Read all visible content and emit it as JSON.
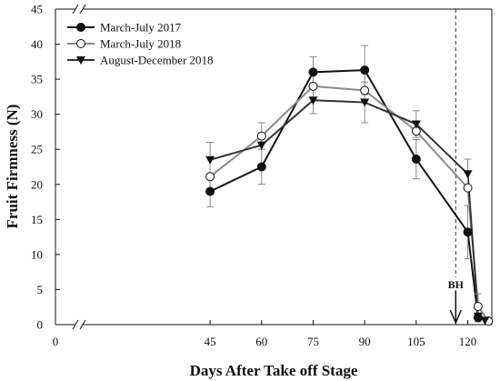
{
  "chart_data": {
    "type": "line",
    "title": "",
    "xlabel": "Days After Take off Stage",
    "ylabel": "Fruit Firmness (N)",
    "xlim": [
      0,
      127
    ],
    "ylim": [
      0,
      45
    ],
    "x_ticks": [
      0,
      45,
      60,
      75,
      90,
      105,
      120
    ],
    "y_ticks": [
      0,
      5,
      10,
      15,
      20,
      25,
      30,
      35,
      40,
      45
    ],
    "axis_breaks": [
      "x",
      "y"
    ],
    "grid": false,
    "legend_position": "top-left",
    "series": [
      {
        "name": "March-July 2017",
        "marker": "filled-circle",
        "color": "#111111",
        "x": [
          45,
          60,
          75,
          90,
          105,
          120,
          123
        ],
        "y": [
          19.0,
          22.5,
          36.0,
          36.3,
          23.6,
          13.2,
          1.0
        ],
        "error": [
          2.2,
          2.5,
          2.2,
          3.5,
          2.8,
          3.8,
          0.6
        ]
      },
      {
        "name": "March-July 2018",
        "marker": "open-circle",
        "color": "#8a8a8a",
        "x": [
          45,
          60,
          75,
          90,
          105,
          120,
          123,
          126
        ],
        "y": [
          21.1,
          26.9,
          34.0,
          33.4,
          27.6,
          19.5,
          2.6,
          0.5
        ],
        "error": [
          0,
          1.9,
          0,
          0,
          0,
          0,
          1.8,
          0
        ]
      },
      {
        "name": "August-December 2018",
        "marker": "filled-triangle-down",
        "color": "#333333",
        "x": [
          45,
          60,
          75,
          90,
          105,
          120,
          123,
          125
        ],
        "y": [
          23.5,
          25.6,
          32.0,
          31.7,
          28.6,
          21.5,
          1.2,
          0.6
        ],
        "error": [
          2.5,
          0,
          1.9,
          2.9,
          1.9,
          2.1,
          0,
          0
        ]
      }
    ],
    "annotations": [
      {
        "text": "BH",
        "x": 116.5,
        "type": "dashed-vertical-line-with-arrow"
      }
    ]
  }
}
